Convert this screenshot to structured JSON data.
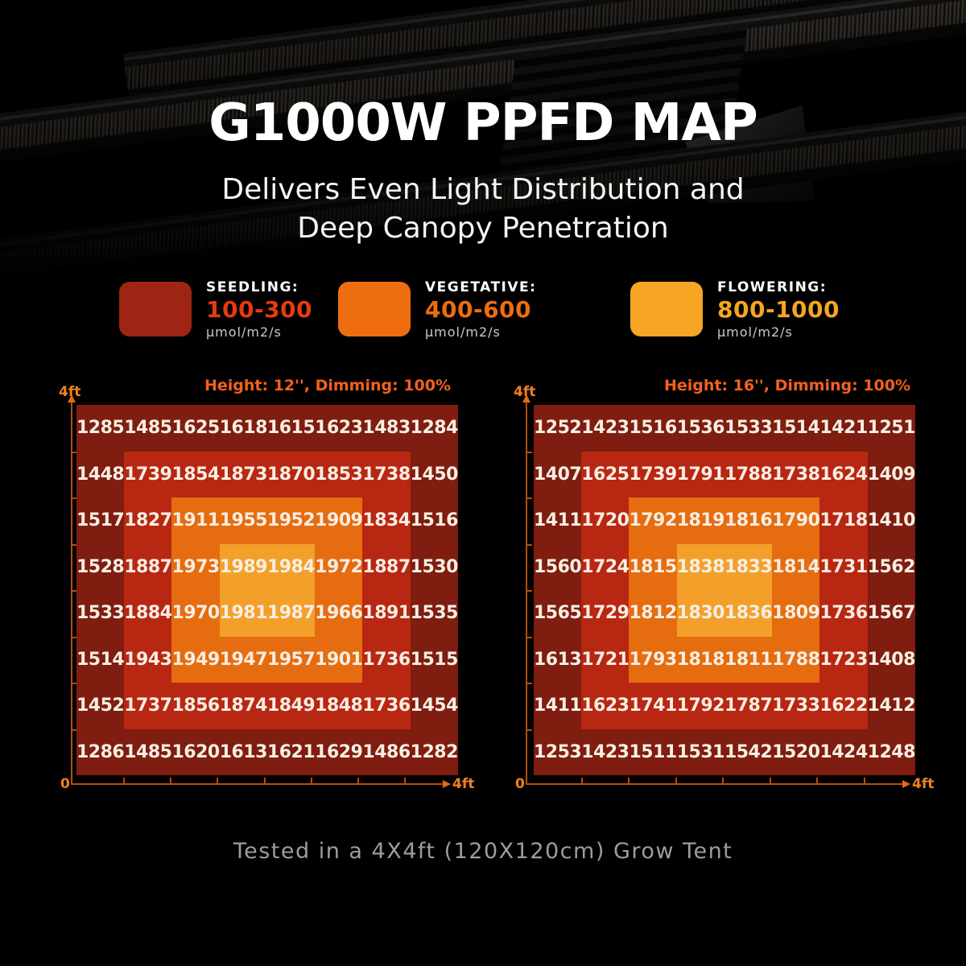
{
  "title": "G1000W PPFD MAP",
  "subtitle": {
    "line1": "Delivers Even Light Distribution and",
    "line2": "Deep Canopy Penetration"
  },
  "legend": {
    "items": [
      {
        "name": "seedling",
        "label": "SEEDLING:",
        "range": "100-300",
        "unit": "μmol/m2/s",
        "swatch_color": "#9e2414",
        "range_color": "#e73a10"
      },
      {
        "name": "vegetative",
        "label": "VEGETATIVE:",
        "range": "400-600",
        "unit": "μmol/m2/s",
        "swatch_color": "#ee6d0f",
        "range_color": "#ee6d0f"
      },
      {
        "name": "flowering",
        "label": "FLOWERING:",
        "range": "800-1000",
        "unit": "μmol/m2/s",
        "swatch_color": "#f6a623",
        "range_color": "#f6a623"
      }
    ]
  },
  "heatmap_colors": {
    "ring0": "#7e1d10",
    "ring1": "#b82712",
    "ring2": "#e66c10",
    "ring3": "#f3a02b"
  },
  "axis_labels": {
    "origin": "0",
    "x_end": "4ft",
    "y_end": "4ft"
  },
  "chart_data": [
    {
      "type": "heatmap",
      "title": "Height: 12'', Dimming: 100%",
      "x_axis": {
        "start_label": "0",
        "end_label": "4ft"
      },
      "y_axis": {
        "end_label": "4ft"
      },
      "values": [
        [
          1285,
          1485,
          1625,
          1618,
          1615,
          1623,
          1483,
          1284
        ],
        [
          1448,
          1739,
          1854,
          1873,
          1870,
          1853,
          1738,
          1450
        ],
        [
          1517,
          1827,
          1911,
          1955,
          1952,
          1909,
          1834,
          1516
        ],
        [
          1528,
          1887,
          1973,
          1989,
          1984,
          1972,
          1887,
          1530
        ],
        [
          1533,
          1884,
          1970,
          1981,
          1987,
          1966,
          1891,
          1535
        ],
        [
          1514,
          1943,
          1949,
          1947,
          1957,
          1901,
          1736,
          1515
        ],
        [
          1452,
          1737,
          1856,
          1874,
          1849,
          1848,
          1736,
          1454
        ],
        [
          1286,
          1485,
          1620,
          1613,
          1621,
          1629,
          1486,
          1282
        ]
      ]
    },
    {
      "type": "heatmap",
      "title": "Height: 16'', Dimming: 100%",
      "x_axis": {
        "start_label": "0",
        "end_label": "4ft"
      },
      "y_axis": {
        "end_label": "4ft"
      },
      "values": [
        [
          1252,
          1423,
          1516,
          1536,
          1533,
          1514,
          1421,
          1251
        ],
        [
          1407,
          1625,
          1739,
          1791,
          1788,
          1738,
          1624,
          1409
        ],
        [
          1411,
          1720,
          1792,
          1819,
          1816,
          1790,
          1718,
          1410
        ],
        [
          1560,
          1724,
          1815,
          1838,
          1833,
          1814,
          1731,
          1562
        ],
        [
          1565,
          1729,
          1812,
          1830,
          1836,
          1809,
          1736,
          1567
        ],
        [
          1613,
          1721,
          1793,
          1818,
          1811,
          1788,
          1723,
          1408
        ],
        [
          1411,
          1623,
          1741,
          1792,
          1787,
          1733,
          1622,
          1412
        ],
        [
          1253,
          1423,
          1511,
          1531,
          1542,
          1520,
          1424,
          1248
        ]
      ]
    }
  ],
  "footer": "Tested in a 4X4ft (120X120cm) Grow Tent"
}
